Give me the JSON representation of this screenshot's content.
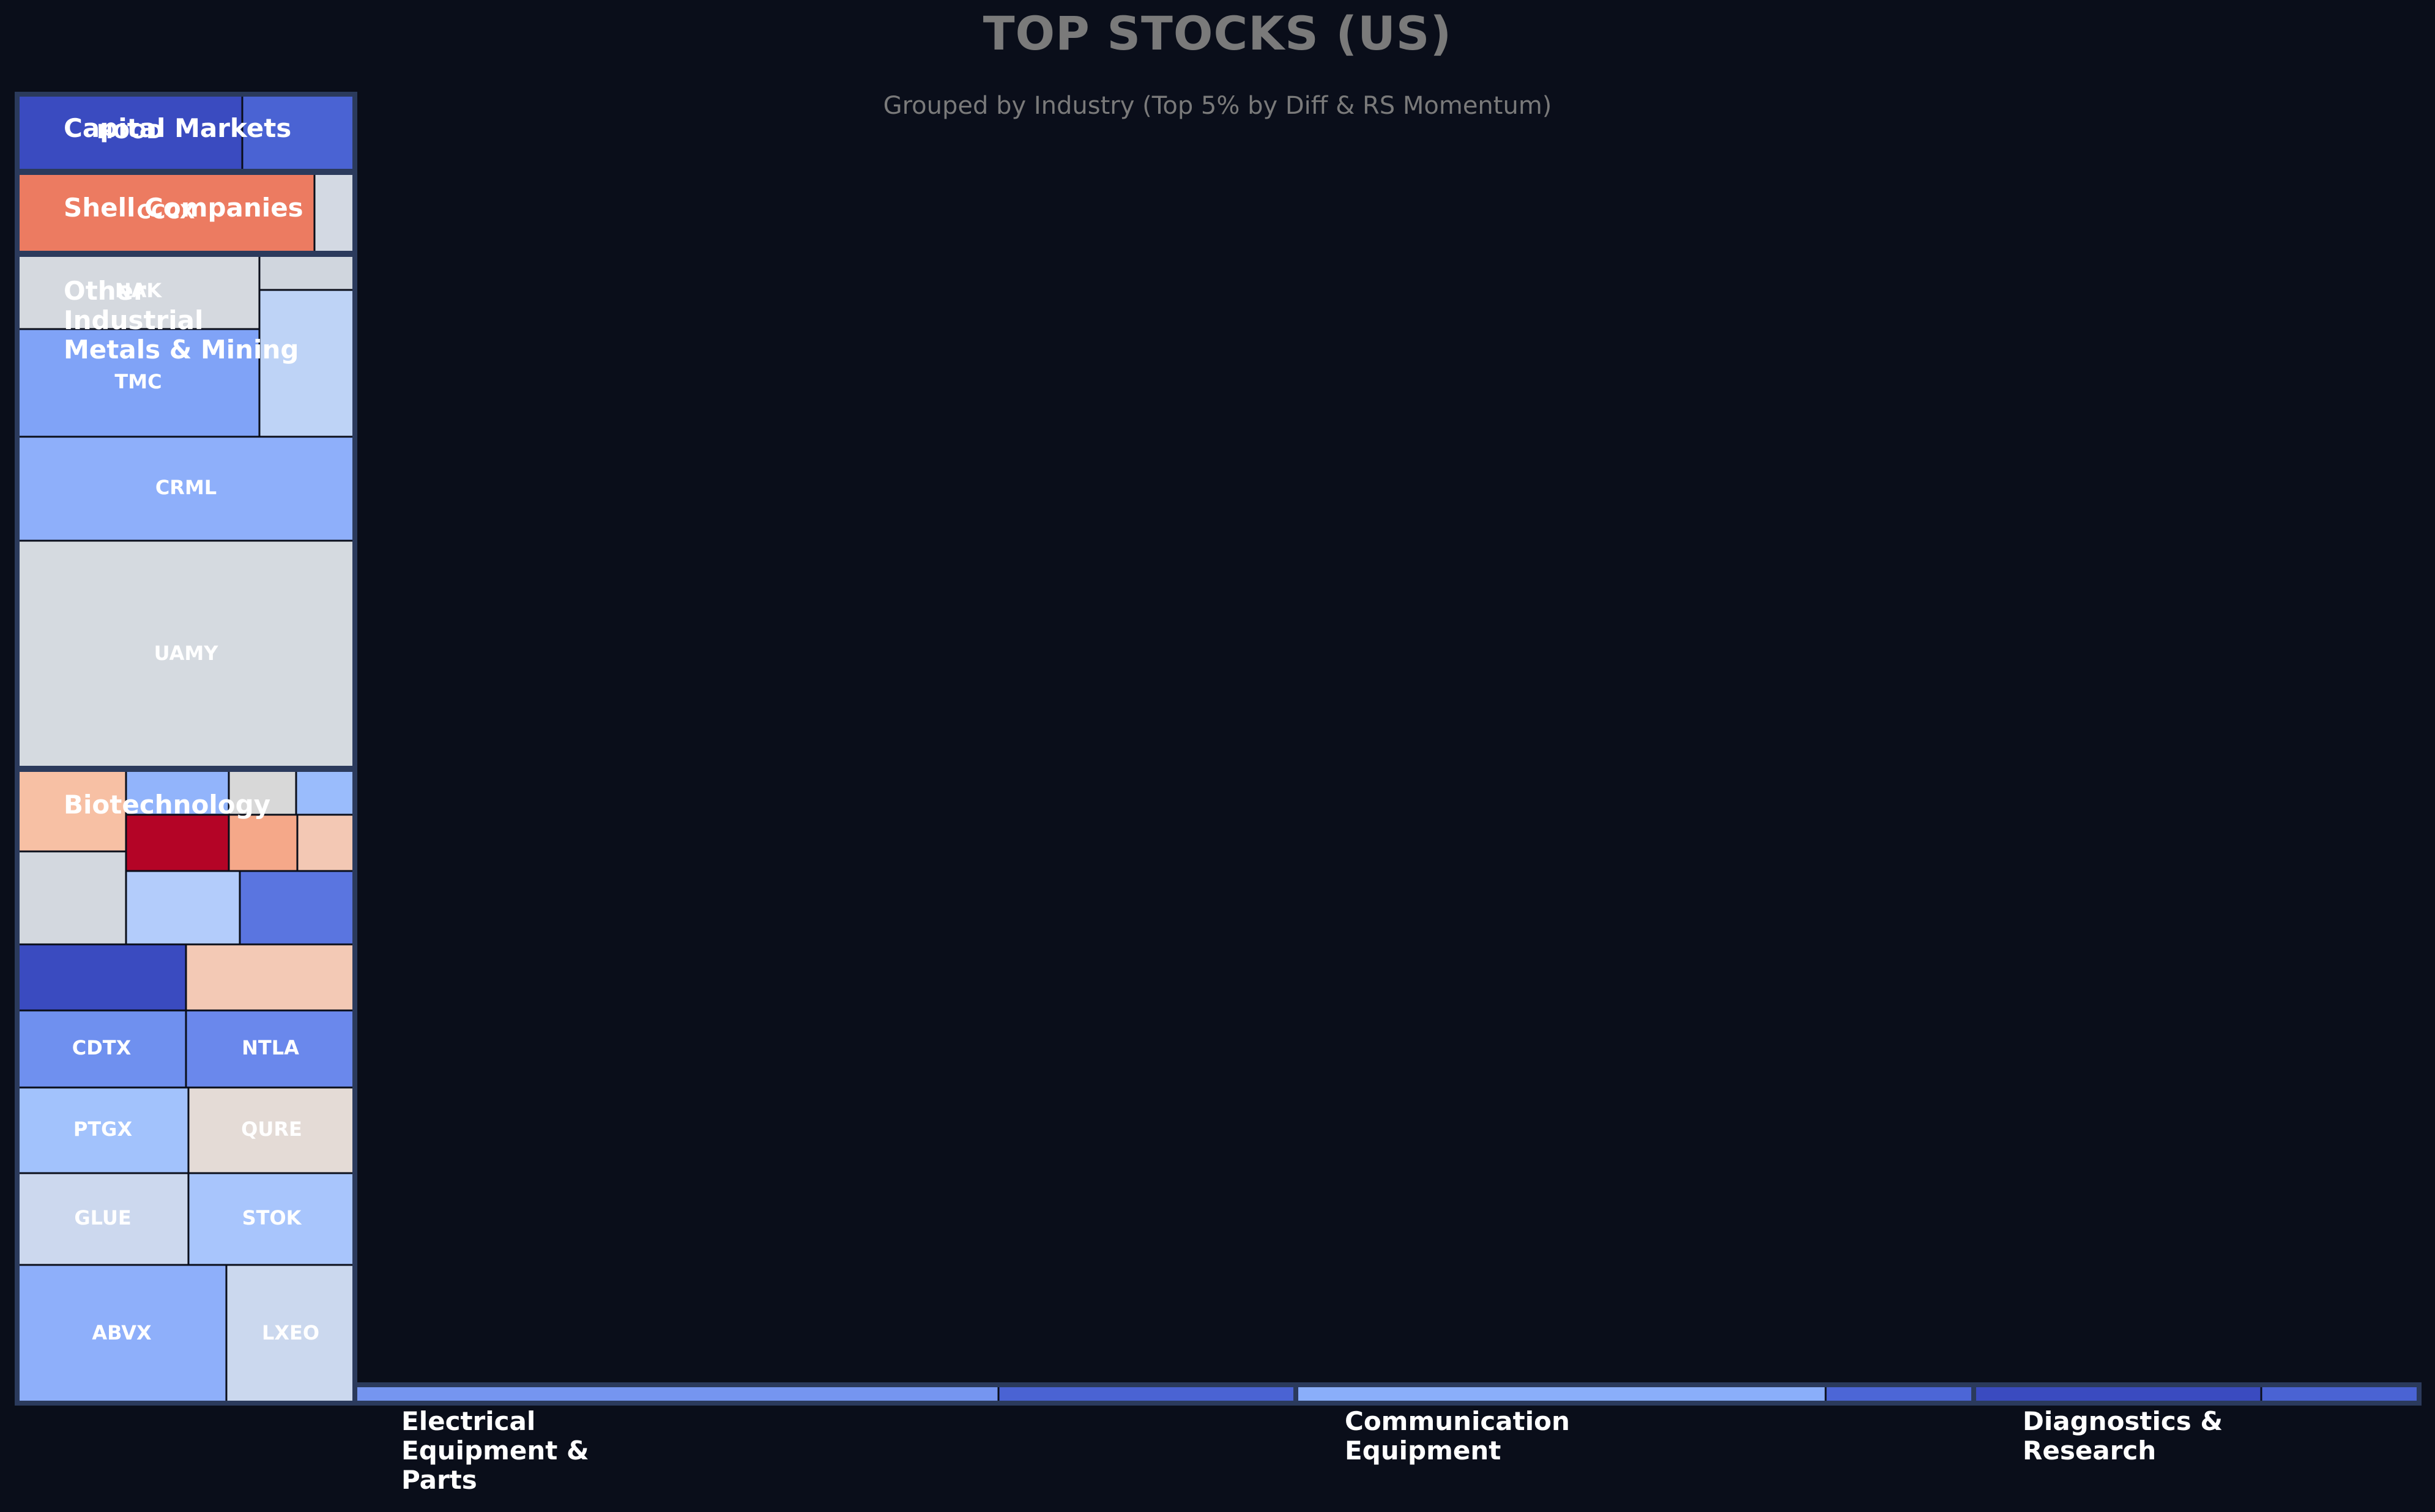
{
  "title": "TOP STOCKS (US)",
  "subtitle": "Grouped by Industry (Top 5% by Diff & RS Momentum)",
  "chart_data": {
    "type": "treemap",
    "colors": {
      "background": "#0a0e1a",
      "group_border": "#2b3a5c",
      "tile_border": "#0a0e1a"
    },
    "groups": [
      {
        "name": "Capital Markets",
        "label_lines": [
          "Capital Markets"
        ],
        "tiles": [
          {
            "ticker": "HOOD",
            "label": "HOOD",
            "color": "#3a4bc0"
          },
          {
            "ticker": "",
            "label": "",
            "color": "#4a63d3"
          }
        ]
      },
      {
        "name": "Shell Companies",
        "label_lines": [
          "Shell Companies"
        ],
        "tiles": [
          {
            "ticker": "CCCX",
            "label": "CCCX",
            "color": "#ec7b61"
          },
          {
            "ticker": "",
            "label": "",
            "color": "#d3d9e3"
          }
        ]
      },
      {
        "name": "Other Industrial Metals & Mining",
        "label_lines": [
          "Other",
          "Industrial",
          "Metals & Mining"
        ],
        "tiles": [
          {
            "ticker": "NAK",
            "label": "NAK",
            "color": "#d5d9df"
          },
          {
            "ticker": "",
            "label": "",
            "color": "#d0d6de"
          },
          {
            "ticker": "TMC",
            "label": "TMC",
            "color": "#80a3f7"
          },
          {
            "ticker": "",
            "label": "",
            "color": "#bed3f6"
          },
          {
            "ticker": "CRML",
            "label": "CRML",
            "color": "#8eaffa"
          },
          {
            "ticker": "UAMY",
            "label": "UAMY",
            "color": "#d5dae0"
          }
        ]
      },
      {
        "name": "Biotechnology",
        "label_lines": [
          "Biotechnology"
        ],
        "tiles": [
          {
            "ticker": "",
            "label": "",
            "color": "#f7c0a4"
          },
          {
            "ticker": "",
            "label": "",
            "color": "#92b4fb"
          },
          {
            "ticker": "",
            "label": "",
            "color": "#d8d8d8"
          },
          {
            "ticker": "",
            "label": "",
            "color": "#9abcfc"
          },
          {
            "ticker": "",
            "label": "",
            "color": "#b40426"
          },
          {
            "ticker": "",
            "label": "",
            "color": "#f5a889"
          },
          {
            "ticker": "",
            "label": "",
            "color": "#f3c8b4"
          },
          {
            "ticker": "",
            "label": "",
            "color": "#d3d8df"
          },
          {
            "ticker": "",
            "label": "",
            "color": "#b3ccfb"
          },
          {
            "ticker": "",
            "label": "",
            "color": "#5a75e0"
          },
          {
            "ticker": "",
            "label": "",
            "color": "#3a4bc0"
          },
          {
            "ticker": "",
            "label": "",
            "color": "#f3c9b5"
          },
          {
            "ticker": "CDTX",
            "label": "CDTX",
            "color": "#6f90ef"
          },
          {
            "ticker": "NTLA",
            "label": "NTLA",
            "color": "#6a88ec"
          },
          {
            "ticker": "PTGX",
            "label": "PTGX",
            "color": "#a2c2fc"
          },
          {
            "ticker": "QURE",
            "label": "QURE",
            "color": "#e4dbd6"
          },
          {
            "ticker": "GLUE",
            "label": "GLUE",
            "color": "#ccd8ee"
          },
          {
            "ticker": "STOK",
            "label": "STOK",
            "color": "#a8c5fc"
          },
          {
            "ticker": "ABVX",
            "label": "ABVX",
            "color": "#8eaffa"
          },
          {
            "ticker": "LXEO",
            "label": "LXEO",
            "color": "#cbd8ee"
          }
        ]
      },
      {
        "name": "Electrical Equipment & Parts",
        "label_lines": [
          "Electrical",
          "Equipment &",
          "Parts"
        ],
        "tiles": [
          {
            "ticker": "",
            "label": "",
            "color": "#7595f0"
          },
          {
            "ticker": "",
            "label": "",
            "color": "#4a63d3"
          }
        ]
      },
      {
        "name": "Communication Equipment",
        "label_lines": [
          "Communication",
          "Equipment"
        ],
        "tiles": [
          {
            "ticker": "",
            "label": "",
            "color": "#8aaefa"
          },
          {
            "ticker": "",
            "label": "",
            "color": "#4c66d6"
          }
        ]
      },
      {
        "name": "Diagnostics & Research",
        "label_lines": [
          "Diagnostics &",
          "Research"
        ],
        "tiles": [
          {
            "ticker": "",
            "label": "",
            "color": "#3a4bc0"
          },
          {
            "ticker": "",
            "label": "",
            "color": "#4a63d3"
          }
        ]
      }
    ]
  }
}
